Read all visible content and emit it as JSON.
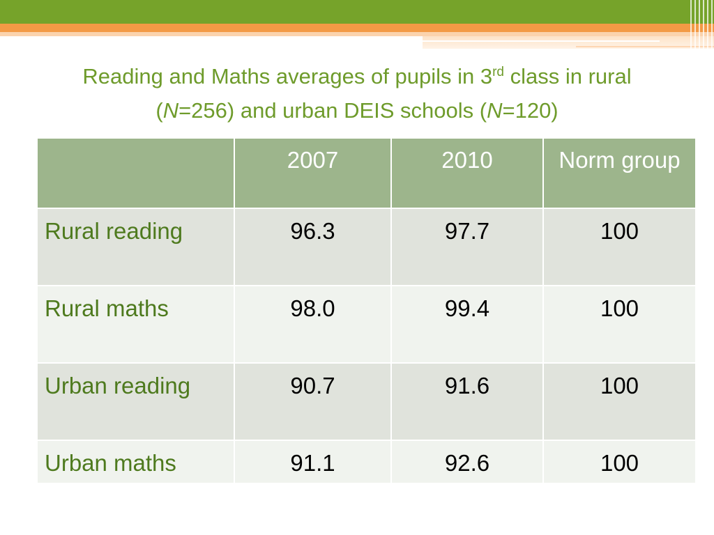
{
  "title": {
    "line1_pre": "Reading and Maths averages of pupils in 3",
    "line1_sup": "rd",
    "line1_post": " class in rural",
    "line2_open": "(",
    "line2_n1": "N",
    "line2_mid": "=256) and urban DEIS schools (",
    "line2_n2": "N",
    "line2_end": "=120)"
  },
  "table": {
    "headers": [
      "",
      "2007",
      "2010",
      "Norm group"
    ],
    "rows": [
      {
        "label": "Rural reading",
        "y2007": "96.3",
        "y2010": "97.7",
        "norm": "100"
      },
      {
        "label": "Rural maths",
        "y2007": "98.0",
        "y2010": "99.4",
        "norm": "100"
      },
      {
        "label": "Urban reading",
        "y2007": "90.7",
        "y2010": "91.6",
        "norm": "100"
      },
      {
        "label": "Urban maths",
        "y2007": "91.1",
        "y2010": "92.6",
        "norm": "100"
      }
    ]
  },
  "colors": {
    "banner_green": "#76a32a",
    "banner_orange": "#f39a45",
    "title_green": "#6e9b2b",
    "header_fill": "#9db58c",
    "row_label_green": "#4e7a1e",
    "row_fill_odd": "#e0e3dc",
    "row_fill_even": "#f0f3ee"
  }
}
